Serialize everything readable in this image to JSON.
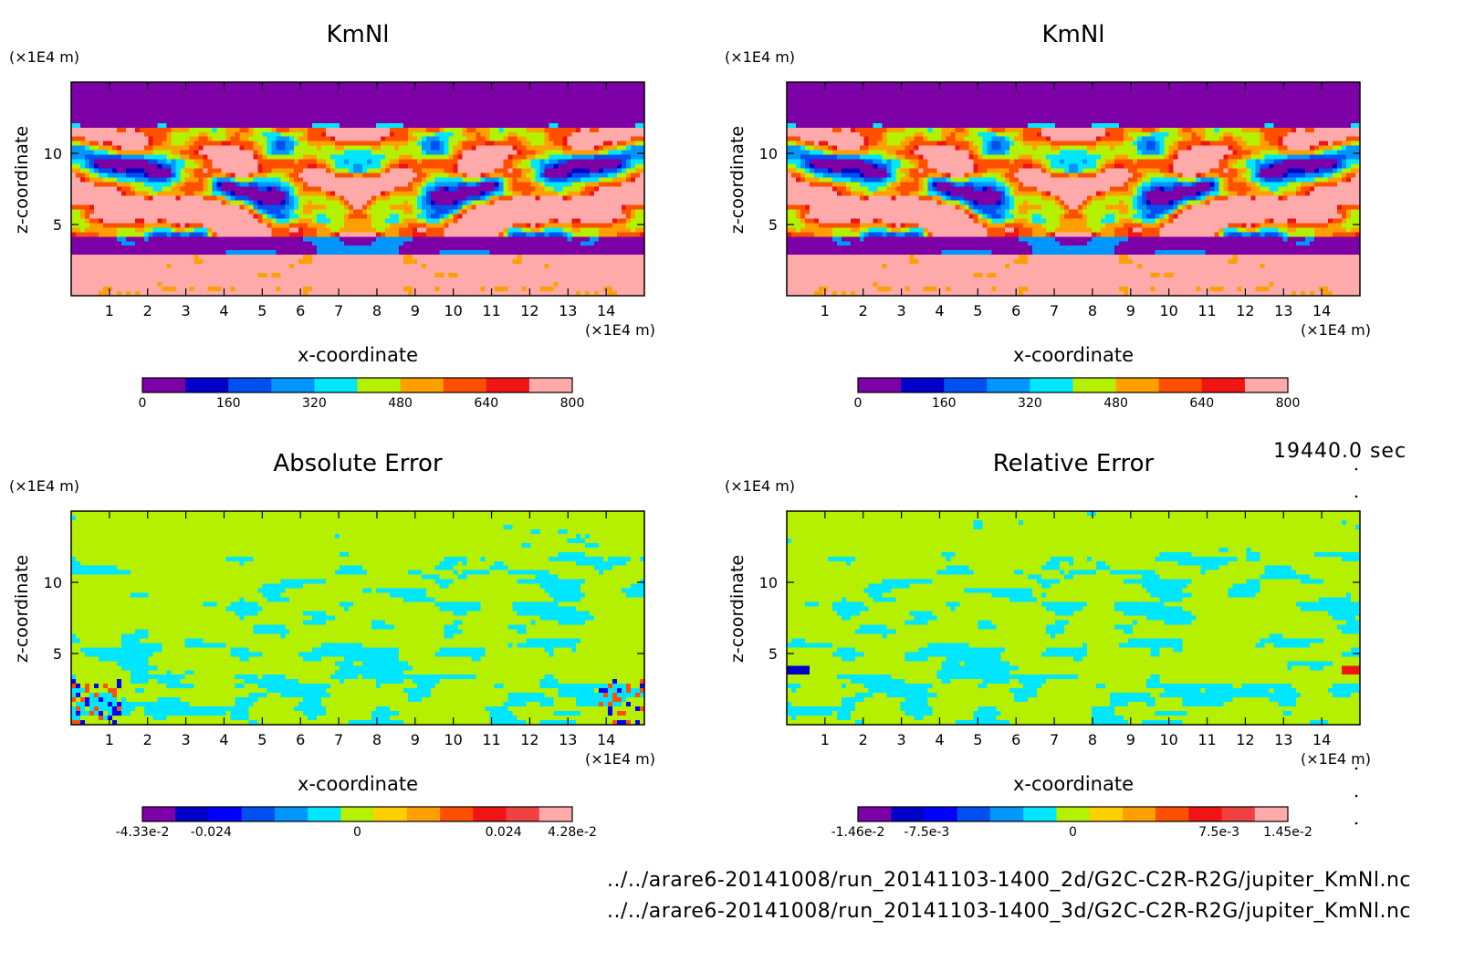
{
  "time_label": "19440.0 sec",
  "files": [
    "../../arare6-20141008/run_20141103-1400_2d/G2C-C2R-R2G/jupiter_KmNl.nc",
    "../../arare6-20141008/run_20141103-1400_3d/G2C-C2R-R2G/jupiter_KmNl.nc"
  ],
  "colors": {
    "km": [
      "#7d00a6",
      "#0000c8",
      "#0050f0",
      "#0096ff",
      "#00e6ff",
      "#b4f000",
      "#ffa000",
      "#ff5000",
      "#f01414",
      "#ffaaaa"
    ],
    "err": [
      "#7d00a6",
      "#0000c8",
      "#0000ff",
      "#0050f0",
      "#0096ff",
      "#00e6ff",
      "#b4f000",
      "#ffd000",
      "#ffa000",
      "#ff5000",
      "#f01414",
      "#f04040",
      "#ffaaaa"
    ]
  },
  "chart_data": [
    {
      "type": "heatmap",
      "title": "KmNl",
      "xlabel": "x-coordinate",
      "ylabel": "z-coordinate",
      "x_unit": "(×1E4 m)",
      "y_unit": "(×1E4 m)",
      "xlim": [
        0,
        15
      ],
      "ylim": [
        0,
        15
      ],
      "xticks": [
        "1",
        "2",
        "3",
        "4",
        "5",
        "6",
        "7",
        "8",
        "9",
        "10",
        "11",
        "12",
        "13",
        "14"
      ],
      "yticks": [
        "5",
        "10"
      ],
      "colorbar": {
        "min": 0,
        "max": 800,
        "labels": [
          "0",
          "160",
          "320",
          "480",
          "640",
          "800"
        ]
      },
      "pattern": "kmnl"
    },
    {
      "type": "heatmap",
      "title": "KmNl",
      "xlabel": "x-coordinate",
      "ylabel": "z-coordinate",
      "x_unit": "(×1E4 m)",
      "y_unit": "(×1E4 m)",
      "xlim": [
        0,
        15
      ],
      "ylim": [
        0,
        15
      ],
      "xticks": [
        "1",
        "2",
        "3",
        "4",
        "5",
        "6",
        "7",
        "8",
        "9",
        "10",
        "11",
        "12",
        "13",
        "14"
      ],
      "yticks": [
        "5",
        "10"
      ],
      "colorbar": {
        "min": 0,
        "max": 800,
        "labels": [
          "0",
          "160",
          "320",
          "480",
          "640",
          "800"
        ]
      },
      "pattern": "kmnl"
    },
    {
      "type": "heatmap",
      "title": "Absolute Error",
      "xlabel": "x-coordinate",
      "ylabel": "z-coordinate",
      "x_unit": "(×1E4 m)",
      "y_unit": "(×1E4 m)",
      "xlim": [
        0,
        15
      ],
      "ylim": [
        0,
        15
      ],
      "xticks": [
        "1",
        "2",
        "3",
        "4",
        "5",
        "6",
        "7",
        "8",
        "9",
        "10",
        "11",
        "12",
        "13",
        "14"
      ],
      "yticks": [
        "5",
        "10"
      ],
      "colorbar": {
        "min": -0.0433,
        "max": 0.0428,
        "labels": [
          "-4.33e-2",
          "-0.024",
          "0",
          "0.024",
          "4.28e-2"
        ]
      },
      "pattern": "error"
    },
    {
      "type": "heatmap",
      "title": "Relative Error",
      "xlabel": "x-coordinate",
      "ylabel": "z-coordinate",
      "x_unit": "(×1E4 m)",
      "y_unit": "(×1E4 m)",
      "xlim": [
        0,
        15
      ],
      "ylim": [
        0,
        15
      ],
      "xticks": [
        "1",
        "2",
        "3",
        "4",
        "5",
        "6",
        "7",
        "8",
        "9",
        "10",
        "11",
        "12",
        "13",
        "14"
      ],
      "yticks": [
        "5",
        "10"
      ],
      "colorbar": {
        "min": -0.0146,
        "max": 0.0145,
        "labels": [
          "-1.46e-2",
          "-7.5e-3",
          "0",
          "7.5e-3",
          "1.45e-2"
        ]
      },
      "pattern": "error"
    }
  ]
}
